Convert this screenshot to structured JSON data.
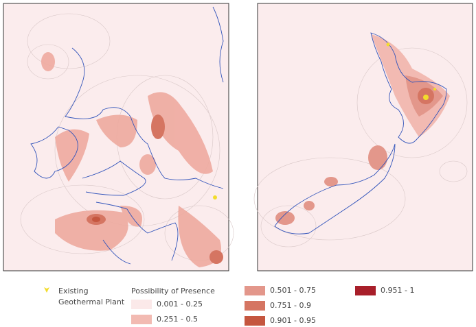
{
  "legend": {
    "marker_label": "Existing Geothermal Plant",
    "marker_color": "#f2dc2c",
    "title": "Possibility of Presence",
    "classes": [
      {
        "label": "0.001 - 0.25",
        "color": "#fbe9e9"
      },
      {
        "label": "0.251 - 0.5",
        "color": "#f2bab2"
      },
      {
        "label": "0.501 - 0.75",
        "color": "#e3978b"
      },
      {
        "label": "0.751 - 0.9",
        "color": "#d57562"
      },
      {
        "label": "0.901 - 0.95",
        "color": "#c5563f"
      },
      {
        "label": "0.951 - 1",
        "color": "#a81f2a"
      }
    ]
  }
}
